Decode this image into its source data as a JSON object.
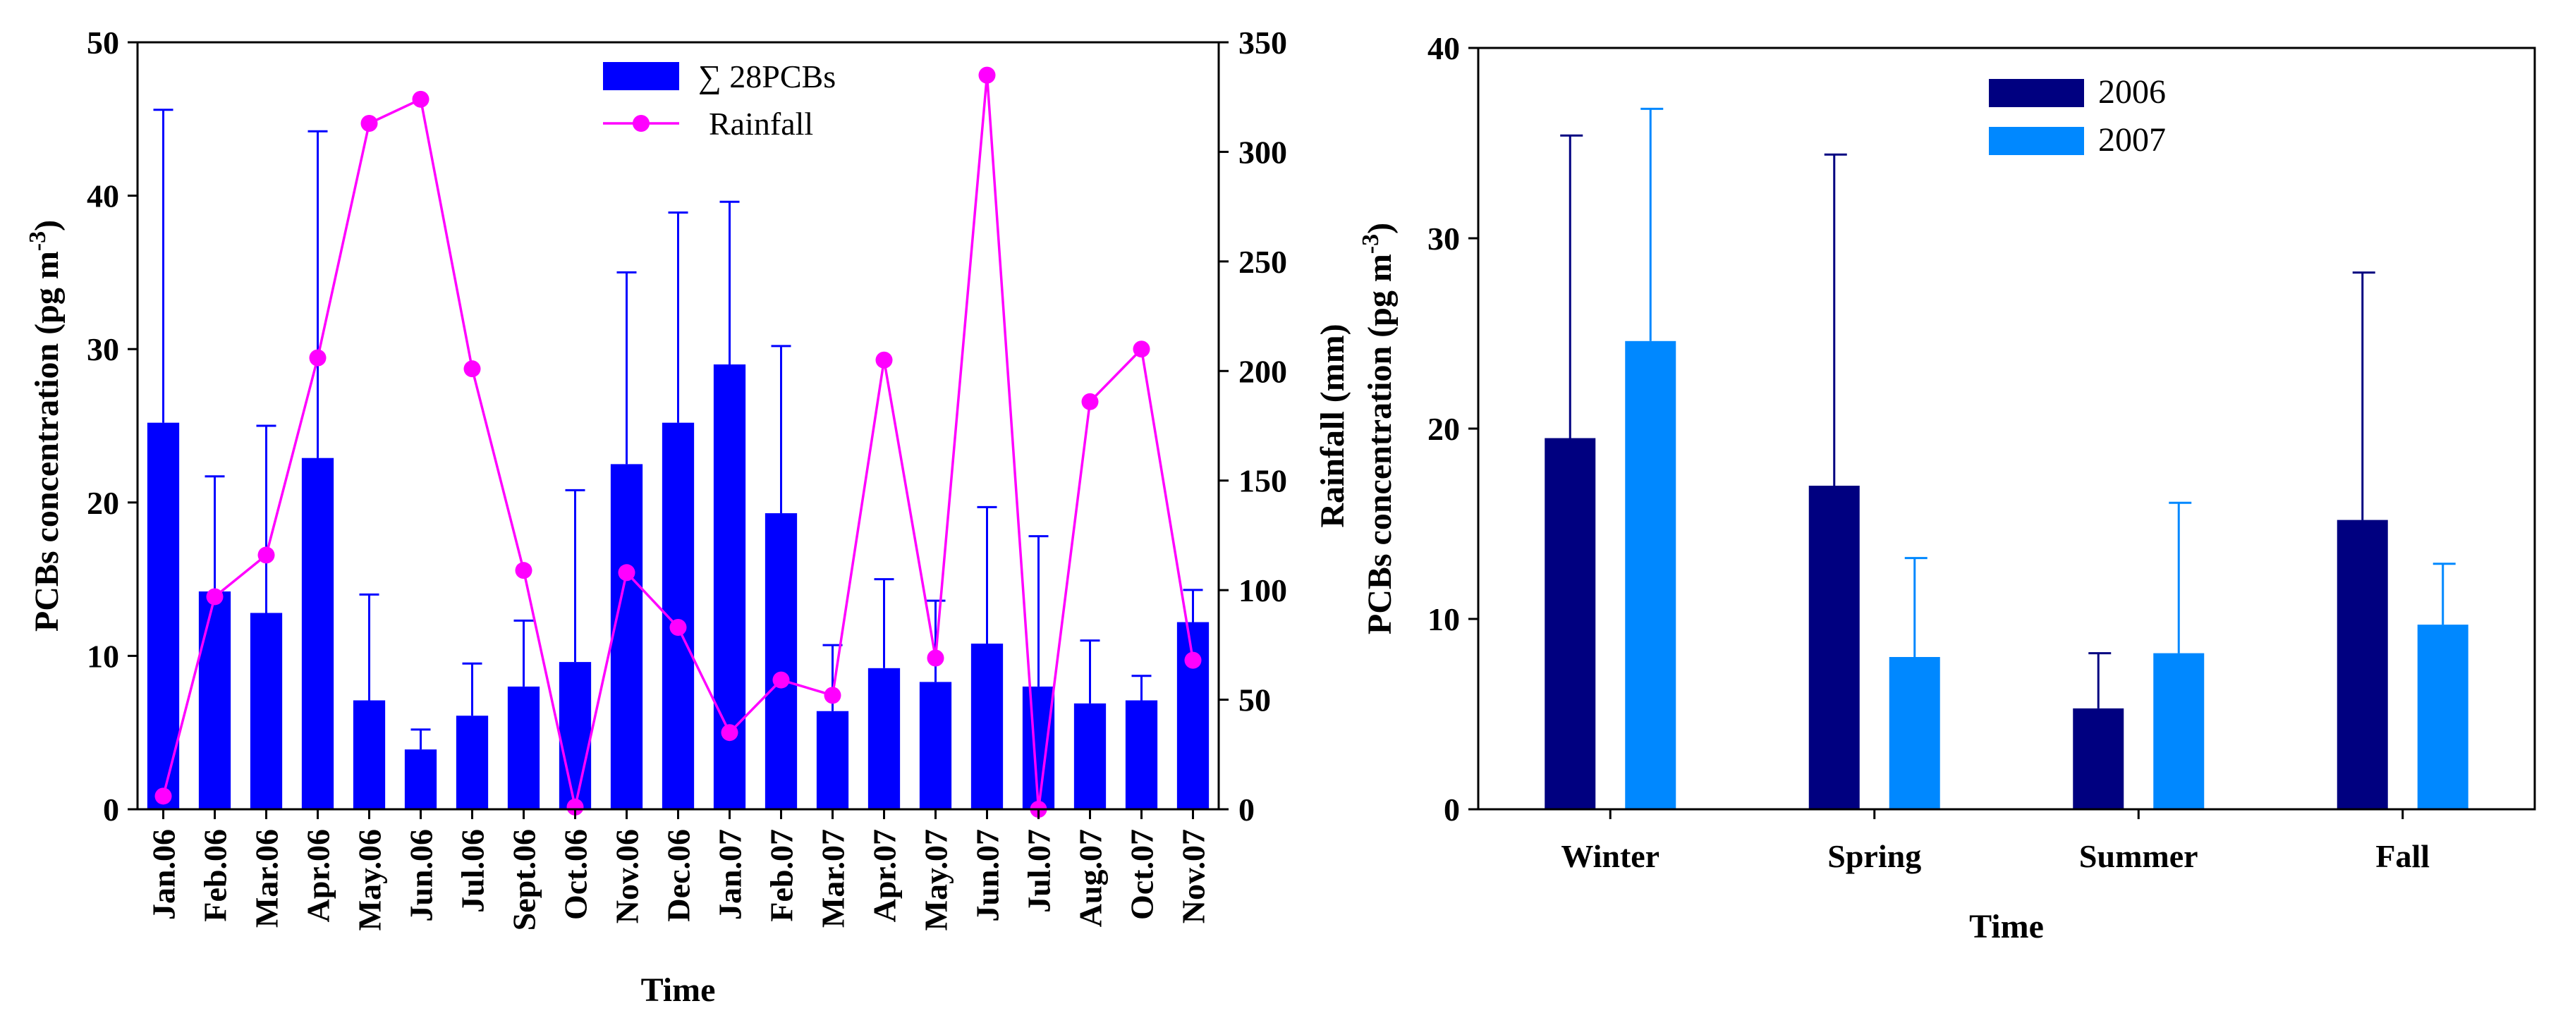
{
  "chart_data": [
    {
      "type": "bar",
      "xlabel": "Time",
      "ylabel": "PCBs concentration (pg m",
      "ylabel_sup": "-3",
      "ylabel_close": ")",
      "y2label": "Rainfall (mm)",
      "ylim": [
        0,
        50
      ],
      "y2lim": [
        0,
        350
      ],
      "yticks": [
        "0",
        "10",
        "20",
        "30",
        "40",
        "50"
      ],
      "y2ticks": [
        "0",
        "50",
        "100",
        "150",
        "200",
        "250",
        "300",
        "350"
      ],
      "categories": [
        "Jan.06",
        "Feb.06",
        "Mar.06",
        "Apr.06",
        "May.06",
        "Jun.06",
        "Jul.06",
        "Sept.06",
        "Oct.06",
        "Nov.06",
        "Dec.06",
        "Jan.07",
        "Feb.07",
        "Mar.07",
        "Apr.07",
        "May.07",
        "Jun.07",
        "Jul.07",
        "Aug.07",
        "Oct.07",
        "Nov.07"
      ],
      "legend_position": "top-center",
      "series": [
        {
          "name": "∑ 28PCBs",
          "kind": "bar",
          "color": "#0000ff",
          "values": [
            25.2,
            14.2,
            12.8,
            22.9,
            7.1,
            3.9,
            6.1,
            8.0,
            9.6,
            22.5,
            25.2,
            29.0,
            19.3,
            6.4,
            9.2,
            8.3,
            10.8,
            8.0,
            6.9,
            7.1,
            12.2
          ],
          "errors": [
            20.4,
            7.5,
            12.2,
            21.3,
            6.9,
            1.3,
            3.4,
            4.3,
            11.2,
            12.5,
            13.7,
            10.6,
            10.9,
            4.3,
            5.8,
            5.3,
            8.9,
            9.8,
            4.1,
            1.6,
            2.1
          ]
        },
        {
          "name": "Rainfall",
          "kind": "line",
          "axis": "right",
          "color": "#ff00ff",
          "values": [
            6,
            97,
            116,
            206,
            313,
            324,
            201,
            109,
            1,
            108,
            83,
            35,
            59,
            52,
            205,
            69,
            335,
            0,
            186,
            210,
            68
          ]
        }
      ]
    },
    {
      "type": "bar",
      "xlabel": "Time",
      "ylabel": "PCBs concentration (pg m",
      "ylabel_sup": "-3",
      "ylabel_close": ")",
      "ylim": [
        0,
        40
      ],
      "yticks": [
        "0",
        "10",
        "20",
        "30",
        "40"
      ],
      "categories": [
        "Winter",
        "Spring",
        "Summer",
        "Fall"
      ],
      "legend_position": "top-center",
      "series": [
        {
          "name": "2006",
          "color": "#000080",
          "values": [
            19.5,
            17.0,
            5.3,
            15.2
          ],
          "errors": [
            15.9,
            17.4,
            2.9,
            13.0
          ]
        },
        {
          "name": "2007",
          "color": "#0088ff",
          "values": [
            24.6,
            8.0,
            8.2,
            9.7
          ],
          "errors": [
            12.2,
            5.2,
            7.9,
            3.2
          ]
        }
      ]
    }
  ]
}
